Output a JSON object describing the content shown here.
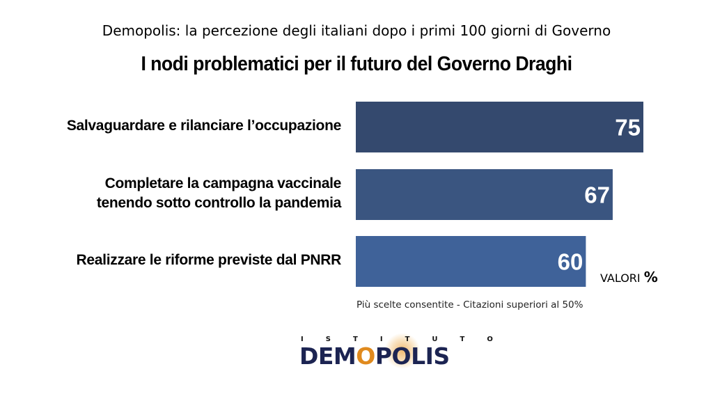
{
  "header": {
    "subtitle": "Demopolis: la percezione degli italiani dopo i primi 100 giorni di Governo",
    "title": "I nodi problematici per il futuro del Governo Draghi"
  },
  "chart_data": {
    "type": "bar",
    "orientation": "horizontal",
    "title": "I nodi problematici per il futuro del Governo Draghi",
    "categories": [
      [
        "Salvaguardare e rilanciare l’occupazione"
      ],
      [
        "Completare la campagna vaccinale",
        "tenendo sotto controllo la pandemia"
      ],
      [
        "Realizzare le riforme previste dal PNRR"
      ]
    ],
    "values": [
      75,
      67,
      60
    ],
    "data_labels": [
      "75",
      "67",
      "60"
    ],
    "bar_colors": [
      "#34496e",
      "#3a5580",
      "#3f6299"
    ],
    "xlim": [
      0,
      100
    ],
    "grid": false,
    "legend": "none"
  },
  "units_label": "VALORI",
  "units_symbol": "%",
  "note": "Più scelte consentite - Citazioni superiori al 50%",
  "logo": {
    "top_letters": [
      "I",
      "S",
      "T",
      "I",
      "T",
      "U",
      "T",
      "O"
    ],
    "word_before": "DEM",
    "word_o": "O",
    "word_after": "POLIS"
  }
}
